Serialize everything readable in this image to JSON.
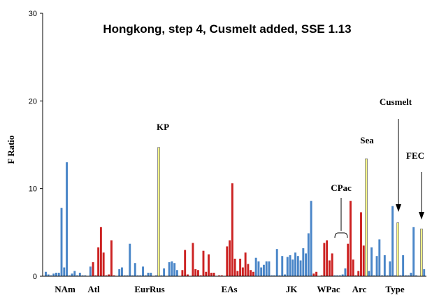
{
  "chart_data": {
    "type": "bar",
    "title": "Hongkong, step 4, Cusmelt added, SSE 1.13",
    "xlabel": "",
    "ylabel": "F Ratio",
    "ylim": [
      0,
      30
    ],
    "yticks": [
      0,
      10,
      20,
      30
    ],
    "grid": false,
    "legend": "none",
    "colors": {
      "blue": "#4a86c8",
      "red": "#cc2222",
      "yellow": "#ffff88"
    },
    "group_labels": [
      "NAm",
      "Atl",
      "EurRus",
      "EAs",
      "JK",
      "WPac",
      "Arc",
      "Type"
    ],
    "annotations": [
      "KP",
      "CPac",
      "Sea",
      "Cusmelt",
      "FEC"
    ],
    "bars": [
      {
        "v": 0.5,
        "c": "blue"
      },
      {
        "v": 0.2,
        "c": "blue"
      },
      {
        "v": 0.1,
        "c": "blue"
      },
      {
        "v": 0.3,
        "c": "blue"
      },
      {
        "v": 0.4,
        "c": "blue"
      },
      {
        "v": 0.4,
        "c": "blue"
      },
      {
        "v": 7.8,
        "c": "blue"
      },
      {
        "v": 1.0,
        "c": "blue"
      },
      {
        "v": 13.0,
        "c": "blue"
      },
      {
        "v": 0.1,
        "c": "blue"
      },
      {
        "v": 0.3,
        "c": "blue"
      },
      {
        "v": 0.6,
        "c": "blue"
      },
      {
        "v": 0.1,
        "c": "blue"
      },
      {
        "v": 0.4,
        "c": "blue"
      },
      {
        "v": 0.1,
        "c": "blue"
      },
      {
        "v": 0.1,
        "c": "blue"
      },
      {
        "v": 0.0,
        "c": "blue"
      },
      {
        "v": 1.1,
        "c": "blue"
      },
      {
        "v": 1.6,
        "c": "red"
      },
      {
        "v": 0.1,
        "c": "red"
      },
      {
        "v": 3.3,
        "c": "red"
      },
      {
        "v": 5.6,
        "c": "red"
      },
      {
        "v": 2.7,
        "c": "red"
      },
      {
        "v": 0.1,
        "c": "red"
      },
      {
        "v": 0.2,
        "c": "red"
      },
      {
        "v": 4.1,
        "c": "red"
      },
      {
        "v": 0.1,
        "c": "red"
      },
      {
        "v": 0.0,
        "c": "blue"
      },
      {
        "v": 0.8,
        "c": "blue"
      },
      {
        "v": 1.0,
        "c": "blue"
      },
      {
        "v": 0.1,
        "c": "blue"
      },
      {
        "v": 0.1,
        "c": "blue"
      },
      {
        "v": 3.7,
        "c": "blue"
      },
      {
        "v": 0.1,
        "c": "blue"
      },
      {
        "v": 1.5,
        "c": "blue"
      },
      {
        "v": 0.1,
        "c": "blue"
      },
      {
        "v": 0.1,
        "c": "blue"
      },
      {
        "v": 1.1,
        "c": "blue"
      },
      {
        "v": 0.1,
        "c": "blue"
      },
      {
        "v": 0.4,
        "c": "blue"
      },
      {
        "v": 0.4,
        "c": "blue"
      },
      {
        "v": 0.0,
        "c": "blue"
      },
      {
        "v": 0.1,
        "c": "blue"
      },
      {
        "v": 14.7,
        "c": "yellow"
      },
      {
        "v": 0.1,
        "c": "blue"
      },
      {
        "v": 0.9,
        "c": "blue"
      },
      {
        "v": 0.0,
        "c": "blue"
      },
      {
        "v": 1.6,
        "c": "blue"
      },
      {
        "v": 1.7,
        "c": "blue"
      },
      {
        "v": 1.5,
        "c": "blue"
      },
      {
        "v": 0.7,
        "c": "blue"
      },
      {
        "v": 0.0,
        "c": "blue"
      },
      {
        "v": 0.7,
        "c": "red"
      },
      {
        "v": 3.0,
        "c": "red"
      },
      {
        "v": 0.2,
        "c": "red"
      },
      {
        "v": 0.0,
        "c": "red"
      },
      {
        "v": 3.8,
        "c": "red"
      },
      {
        "v": 0.8,
        "c": "red"
      },
      {
        "v": 0.7,
        "c": "red"
      },
      {
        "v": 0.1,
        "c": "red"
      },
      {
        "v": 2.9,
        "c": "red"
      },
      {
        "v": 0.5,
        "c": "red"
      },
      {
        "v": 2.5,
        "c": "red"
      },
      {
        "v": 0.4,
        "c": "red"
      },
      {
        "v": 0.4,
        "c": "red"
      },
      {
        "v": 0.0,
        "c": "red"
      },
      {
        "v": 0.1,
        "c": "red"
      },
      {
        "v": 0.1,
        "c": "red"
      },
      {
        "v": 0.0,
        "c": "red"
      },
      {
        "v": 3.4,
        "c": "red"
      },
      {
        "v": 4.1,
        "c": "red"
      },
      {
        "v": 10.6,
        "c": "red"
      },
      {
        "v": 2.0,
        "c": "red"
      },
      {
        "v": 0.6,
        "c": "red"
      },
      {
        "v": 2.0,
        "c": "red"
      },
      {
        "v": 1.0,
        "c": "red"
      },
      {
        "v": 2.7,
        "c": "red"
      },
      {
        "v": 1.4,
        "c": "red"
      },
      {
        "v": 0.7,
        "c": "red"
      },
      {
        "v": 0.5,
        "c": "red"
      },
      {
        "v": 2.1,
        "c": "blue"
      },
      {
        "v": 1.7,
        "c": "blue"
      },
      {
        "v": 1.0,
        "c": "blue"
      },
      {
        "v": 1.3,
        "c": "blue"
      },
      {
        "v": 1.7,
        "c": "blue"
      },
      {
        "v": 1.7,
        "c": "blue"
      },
      {
        "v": 0.1,
        "c": "blue"
      },
      {
        "v": 0.1,
        "c": "blue"
      },
      {
        "v": 3.1,
        "c": "blue"
      },
      {
        "v": 0.1,
        "c": "blue"
      },
      {
        "v": 2.3,
        "c": "blue"
      },
      {
        "v": 0.2,
        "c": "blue"
      },
      {
        "v": 2.2,
        "c": "blue"
      },
      {
        "v": 2.4,
        "c": "blue"
      },
      {
        "v": 1.9,
        "c": "blue"
      },
      {
        "v": 2.7,
        "c": "blue"
      },
      {
        "v": 2.3,
        "c": "blue"
      },
      {
        "v": 1.8,
        "c": "blue"
      },
      {
        "v": 3.2,
        "c": "blue"
      },
      {
        "v": 2.6,
        "c": "blue"
      },
      {
        "v": 4.9,
        "c": "blue"
      },
      {
        "v": 8.6,
        "c": "blue"
      },
      {
        "v": 0.3,
        "c": "red"
      },
      {
        "v": 0.5,
        "c": "red"
      },
      {
        "v": 0.0,
        "c": "red"
      },
      {
        "v": 0.1,
        "c": "red"
      },
      {
        "v": 3.8,
        "c": "red"
      },
      {
        "v": 4.1,
        "c": "red"
      },
      {
        "v": 1.8,
        "c": "red"
      },
      {
        "v": 2.6,
        "c": "red"
      },
      {
        "v": 0.1,
        "c": "blue"
      },
      {
        "v": 0.1,
        "c": "blue"
      },
      {
        "v": 0.1,
        "c": "blue"
      },
      {
        "v": 0.2,
        "c": "blue"
      },
      {
        "v": 0.9,
        "c": "blue"
      },
      {
        "v": 3.7,
        "c": "red"
      },
      {
        "v": 8.6,
        "c": "red"
      },
      {
        "v": 1.9,
        "c": "red"
      },
      {
        "v": 0.1,
        "c": "red"
      },
      {
        "v": 0.6,
        "c": "red"
      },
      {
        "v": 7.3,
        "c": "red"
      },
      {
        "v": 3.5,
        "c": "red"
      },
      {
        "v": 13.4,
        "c": "yellow"
      },
      {
        "v": 0.6,
        "c": "blue"
      },
      {
        "v": 3.3,
        "c": "blue"
      },
      {
        "v": 0.1,
        "c": "blue"
      },
      {
        "v": 2.3,
        "c": "blue"
      },
      {
        "v": 4.2,
        "c": "blue"
      },
      {
        "v": 0.1,
        "c": "blue"
      },
      {
        "v": 2.4,
        "c": "blue"
      },
      {
        "v": 0.1,
        "c": "blue"
      },
      {
        "v": 1.7,
        "c": "blue"
      },
      {
        "v": 8.0,
        "c": "blue"
      },
      {
        "v": 0.1,
        "c": "blue"
      },
      {
        "v": 6.1,
        "c": "yellow"
      },
      {
        "v": 0.1,
        "c": "blue"
      },
      {
        "v": 2.4,
        "c": "blue"
      },
      {
        "v": 0.1,
        "c": "blue"
      },
      {
        "v": 0.1,
        "c": "blue"
      },
      {
        "v": 0.4,
        "c": "blue"
      },
      {
        "v": 5.6,
        "c": "blue"
      },
      {
        "v": 0.1,
        "c": "blue"
      },
      {
        "v": 0.0,
        "c": "blue"
      },
      {
        "v": 5.4,
        "c": "yellow"
      },
      {
        "v": 0.8,
        "c": "blue"
      }
    ]
  }
}
